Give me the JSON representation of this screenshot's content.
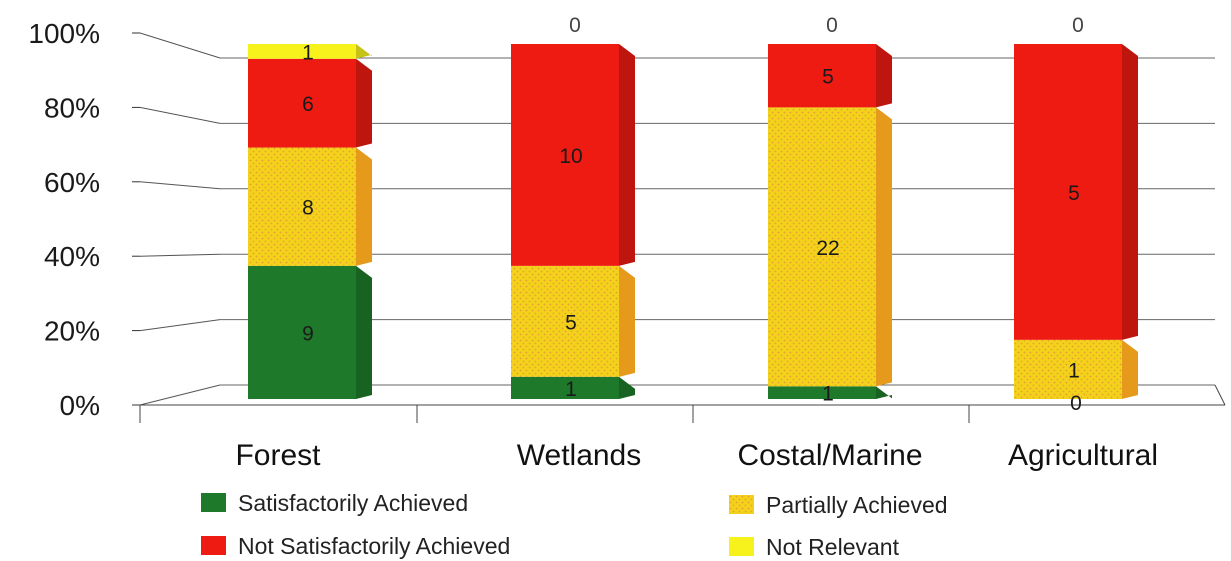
{
  "chart_data": {
    "type": "bar",
    "stacked": true,
    "normalized": true,
    "categories": [
      "Forest",
      "Wetlands",
      "Costal/Marine",
      "Agricultural"
    ],
    "series": [
      {
        "name": "Satisfactorily Achieved",
        "values": [
          9,
          1,
          1,
          0
        ],
        "color": "#1e7a2a"
      },
      {
        "name": "Partially Achieved",
        "values": [
          8,
          5,
          22,
          1
        ],
        "color": "#f2d21a"
      },
      {
        "name": "Not Satisfactorily Achieved",
        "values": [
          6,
          10,
          5,
          5
        ],
        "color": "#ee1b12"
      },
      {
        "name": "Not Relevant",
        "values": [
          1,
          0,
          0,
          0
        ],
        "color": "#f7f21c"
      }
    ],
    "yticks": [
      "0%",
      "20%",
      "40%",
      "60%",
      "80%",
      "100%"
    ],
    "ylim": [
      0,
      100
    ],
    "grid": true,
    "legend_position": "bottom",
    "legend_order": [
      "Satisfactorily Achieved",
      "Partially Achieved",
      "Not Satisfactorily Achieved",
      "Not Relevant"
    ]
  }
}
